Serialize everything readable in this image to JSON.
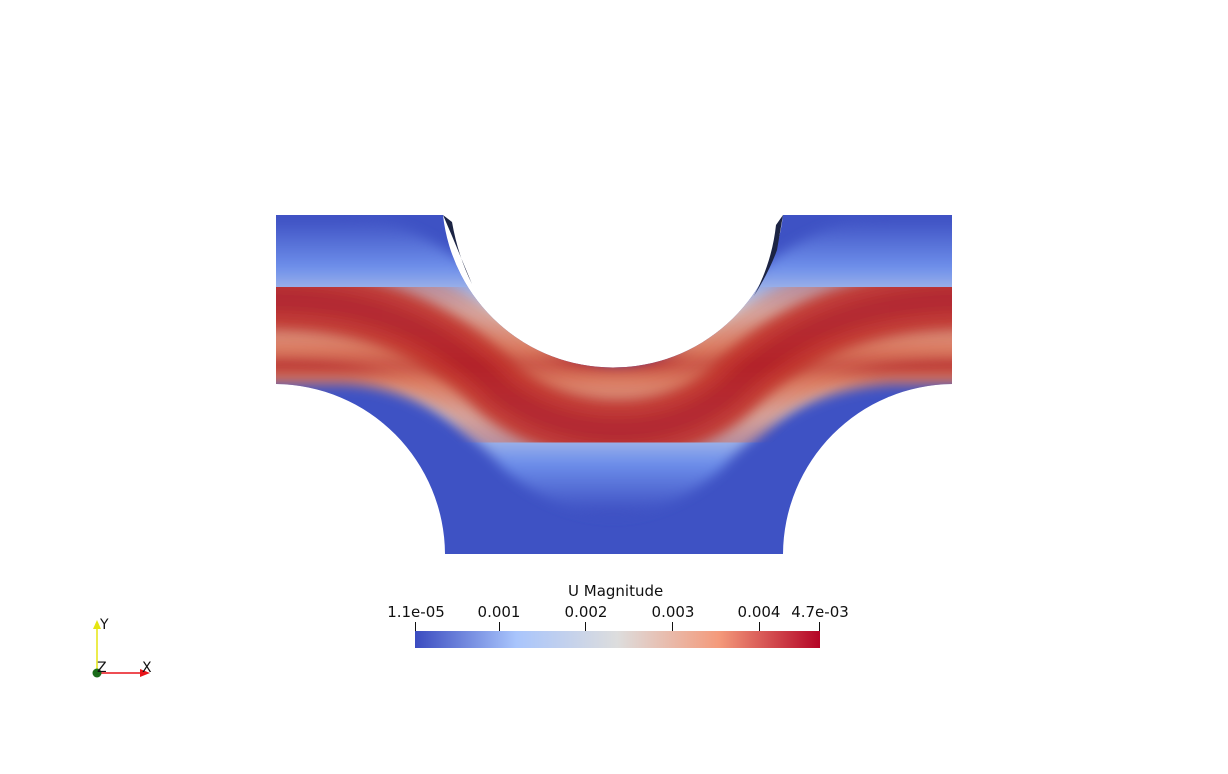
{
  "scalar_bar": {
    "title": "U Magnitude",
    "min_label": "1.1e-05",
    "max_label": "4.7e-03",
    "range": [
      1.1e-05,
      0.0047
    ],
    "ticks": [
      {
        "value": 1.1e-05,
        "label": "1.1e-05"
      },
      {
        "value": 0.001,
        "label": "0.001"
      },
      {
        "value": 0.002,
        "label": "0.002"
      },
      {
        "value": 0.003,
        "label": "0.003"
      },
      {
        "value": 0.004,
        "label": "0.004"
      },
      {
        "value": 0.0047,
        "label": "4.7e-03"
      }
    ],
    "colormap": "Cool to Warm",
    "colors": [
      "#3b4cc0",
      "#a9c5fc",
      "#dddddd",
      "#f49a7b",
      "#b40426"
    ]
  },
  "axes": {
    "x_label": "X",
    "y_label": "Y",
    "z_label": "Z",
    "x_color": "#e8141a",
    "y_color": "#e5e510",
    "z_color": "#1a6b1a"
  },
  "background": "#ffffff"
}
